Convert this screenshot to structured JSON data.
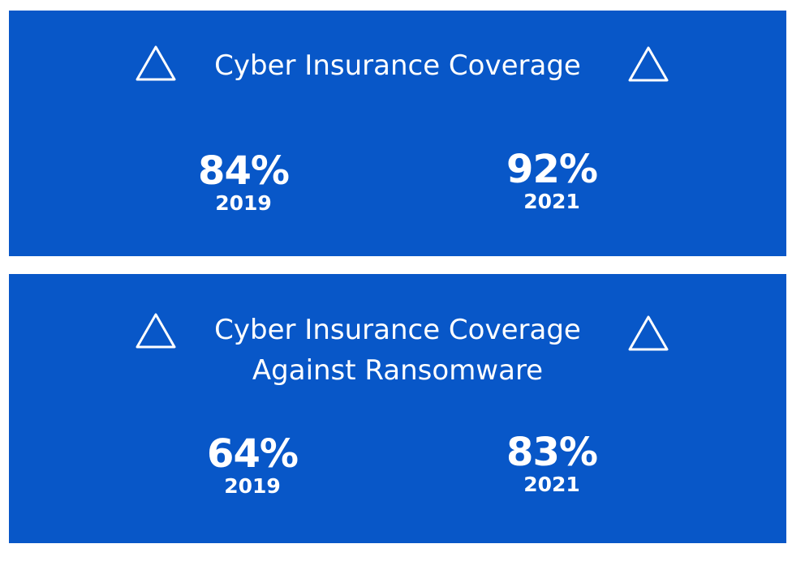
{
  "colors": {
    "panel_background": "#0857c8",
    "text": "#ffffff",
    "page_background": "#ffffff"
  },
  "panels": [
    {
      "icon": "triangle-outline-icon",
      "title_lines": [
        "Cyber Insurance Coverage"
      ],
      "stats": [
        {
          "value": "84%",
          "year": "2019"
        },
        {
          "value": "92%",
          "year": "2021"
        }
      ]
    },
    {
      "icon": "triangle-outline-icon",
      "title_lines": [
        "Cyber Insurance Coverage",
        "Against Ransomware"
      ],
      "stats": [
        {
          "value": "64%",
          "year": "2019"
        },
        {
          "value": "83%",
          "year": "2021"
        }
      ]
    }
  ]
}
